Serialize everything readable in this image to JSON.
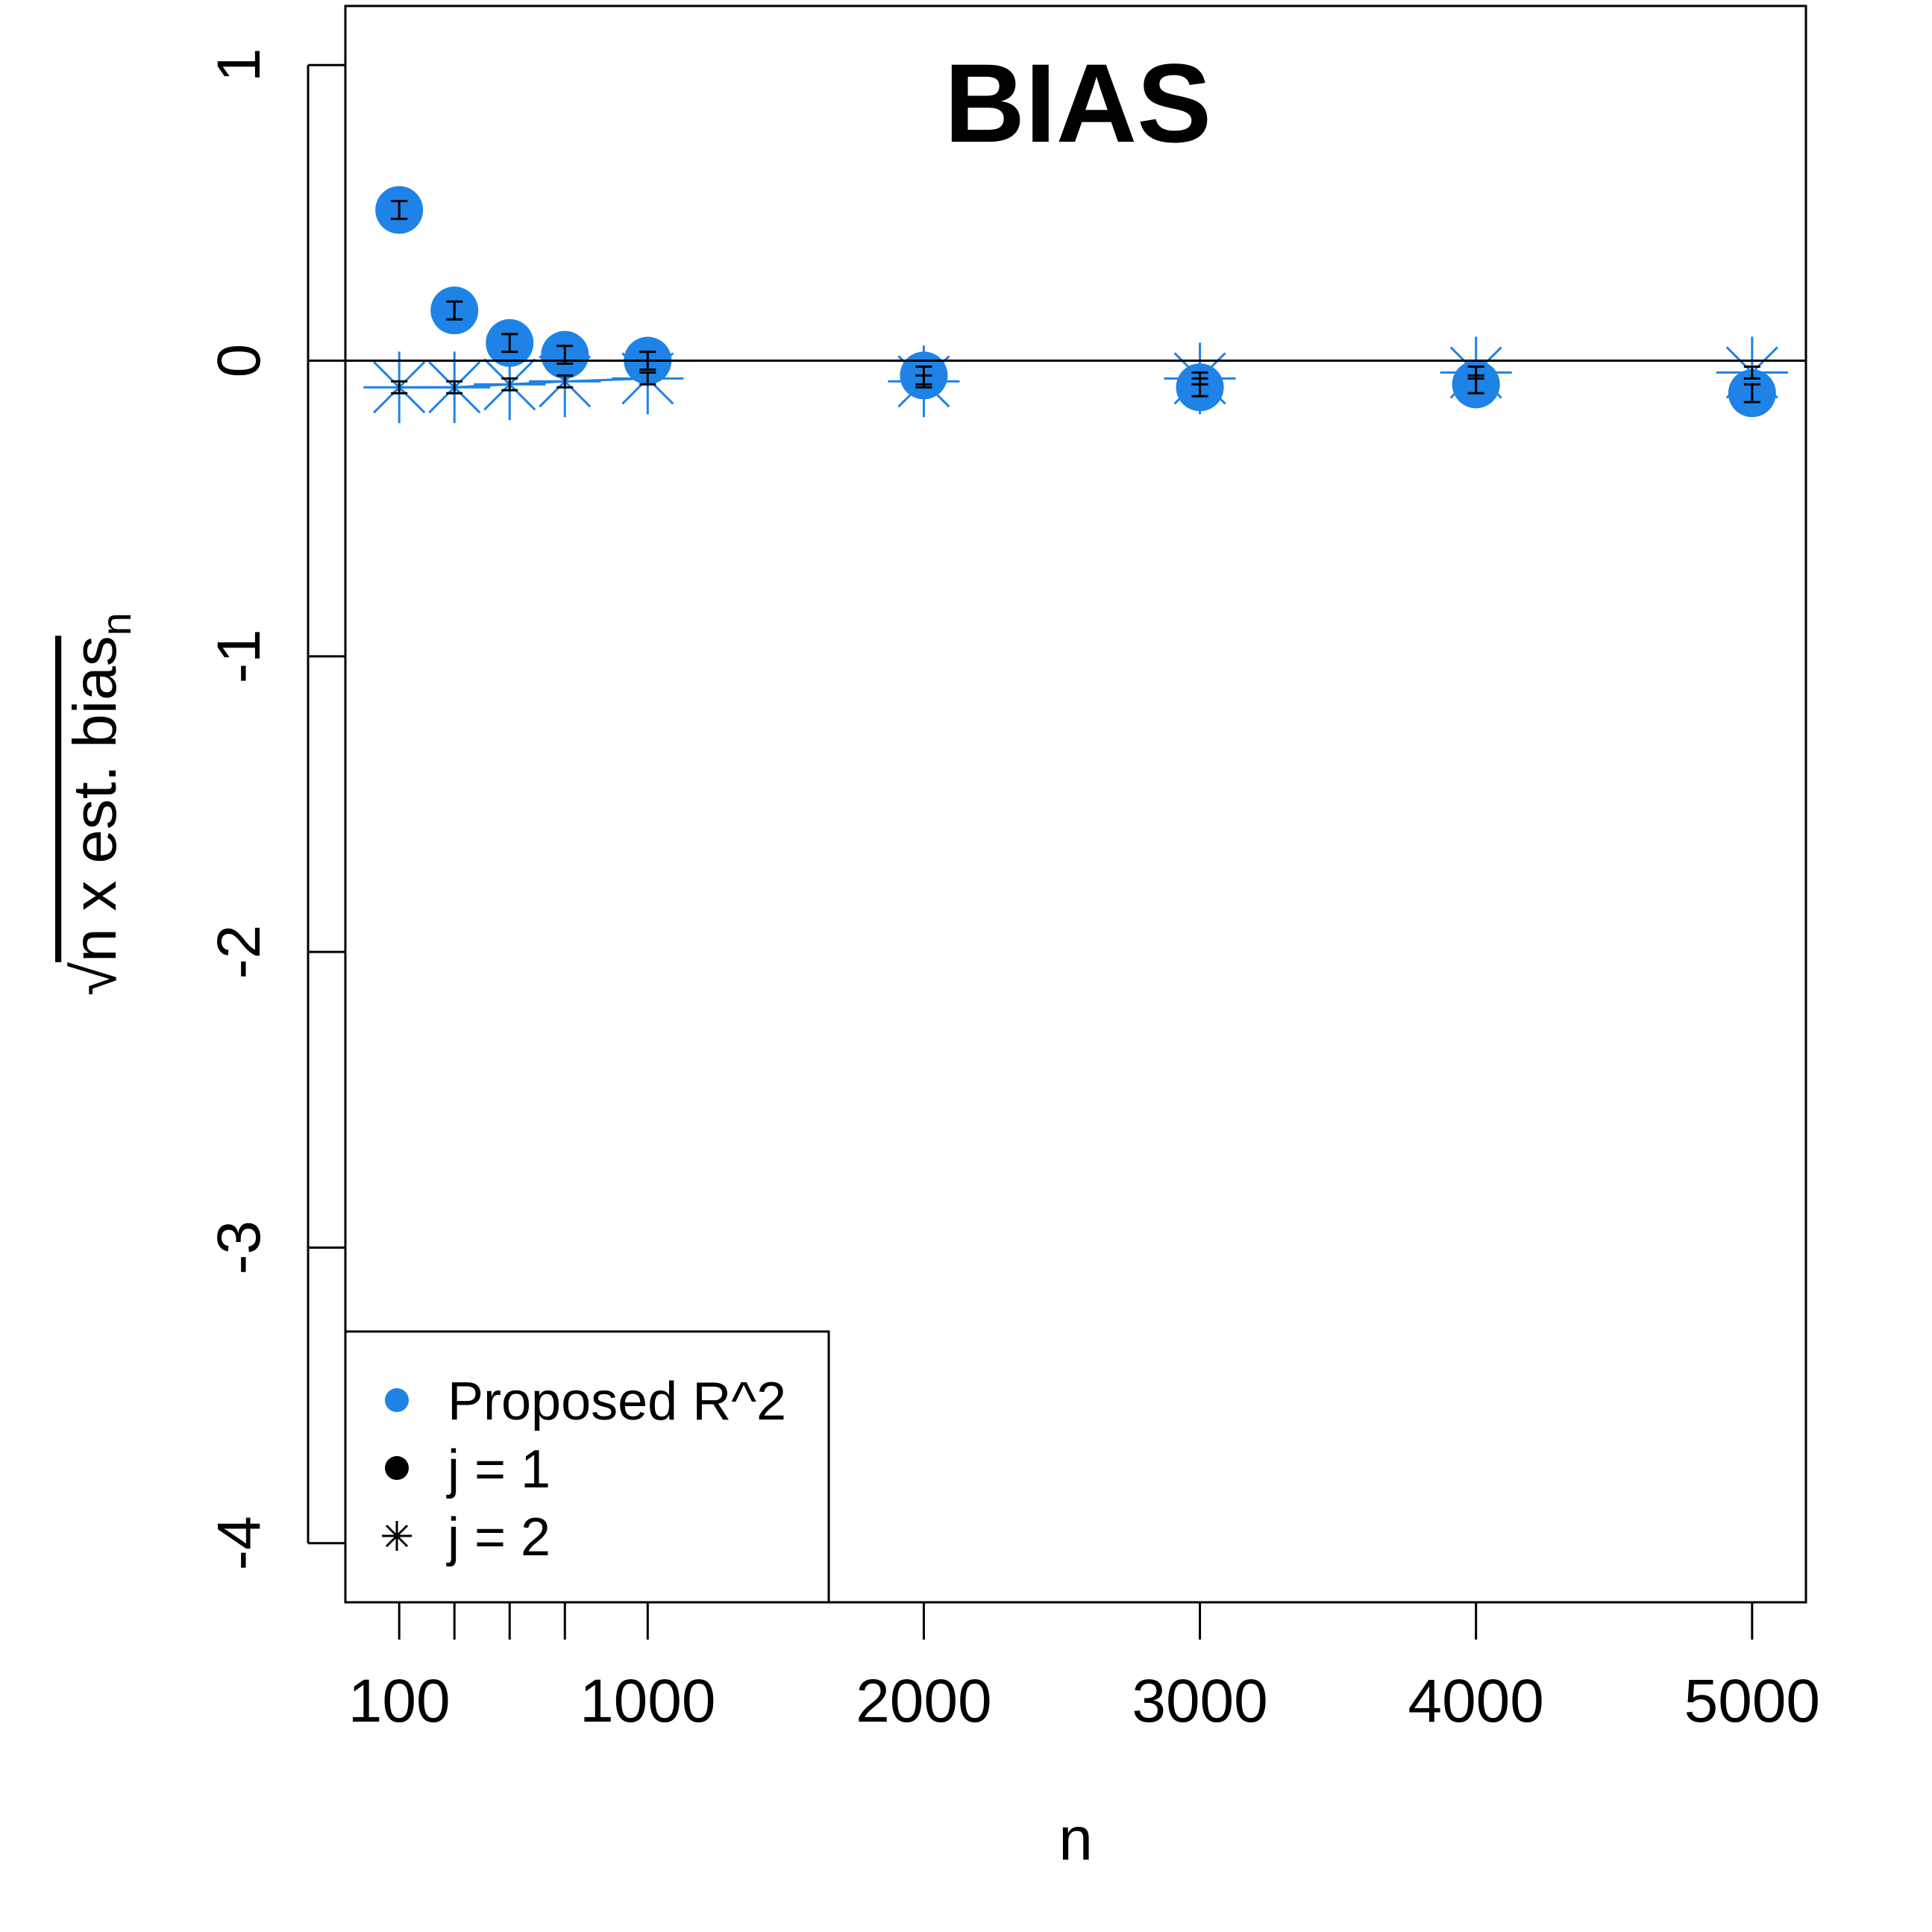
{
  "chart_data": {
    "type": "scatter",
    "title": "BIAS",
    "xlabel": "n",
    "ylabel_main": "n x est. bias",
    "ylabel_sub": "n",
    "x_ticks": [
      {
        "value": 100,
        "label": "100"
      },
      {
        "value": 300,
        "label": ""
      },
      {
        "value": 500,
        "label": ""
      },
      {
        "value": 700,
        "label": ""
      },
      {
        "value": 1000,
        "label": "1000"
      },
      {
        "value": 2000,
        "label": "2000"
      },
      {
        "value": 3000,
        "label": "3000"
      },
      {
        "value": 4000,
        "label": "4000"
      },
      {
        "value": 5000,
        "label": "5000"
      }
    ],
    "y_ticks": [
      {
        "value": 1,
        "label": "1"
      },
      {
        "value": 0,
        "label": "0"
      },
      {
        "value": -1,
        "label": "-1"
      },
      {
        "value": -2,
        "label": "-2"
      },
      {
        "value": -3,
        "label": "-3"
      },
      {
        "value": -4,
        "label": "-4"
      }
    ],
    "xlim": [
      -95,
      5195
    ],
    "ylim": [
      -4.2,
      1.2
    ],
    "reference_line_y": 0,
    "color": "#1e82e6",
    "series": [
      {
        "name": "j = 1",
        "marker": "circle",
        "x": [
          100,
          300,
          500,
          700,
          1000,
          2000,
          3000,
          4000,
          5000
        ],
        "y": [
          0.51,
          0.17,
          0.06,
          0.02,
          0.0,
          -0.05,
          -0.09,
          -0.08,
          -0.11
        ],
        "error": [
          0.03,
          0.03,
          0.03,
          0.03,
          0.03,
          0.03,
          0.03,
          0.03,
          0.03
        ]
      },
      {
        "name": "j = 2",
        "marker": "asterisk",
        "x": [
          100,
          300,
          500,
          700,
          1000,
          2000,
          3000,
          4000,
          5000
        ],
        "y": [
          -0.09,
          -0.09,
          -0.08,
          -0.07,
          -0.06,
          -0.07,
          -0.06,
          -0.04,
          -0.04
        ],
        "error": [
          0.02,
          0.02,
          0.02,
          0.02,
          0.02,
          0.02,
          0.02,
          0.02,
          0.02
        ]
      }
    ],
    "legend": {
      "position": "bottom-left",
      "entries": [
        {
          "label": "Proposed R^2",
          "marker": "circle",
          "color": "#1e82e6"
        },
        {
          "label": "j = 1",
          "marker": "circle",
          "color": "#000000"
        },
        {
          "label": "j = 2",
          "marker": "asterisk",
          "color": "#000000"
        }
      ]
    }
  }
}
